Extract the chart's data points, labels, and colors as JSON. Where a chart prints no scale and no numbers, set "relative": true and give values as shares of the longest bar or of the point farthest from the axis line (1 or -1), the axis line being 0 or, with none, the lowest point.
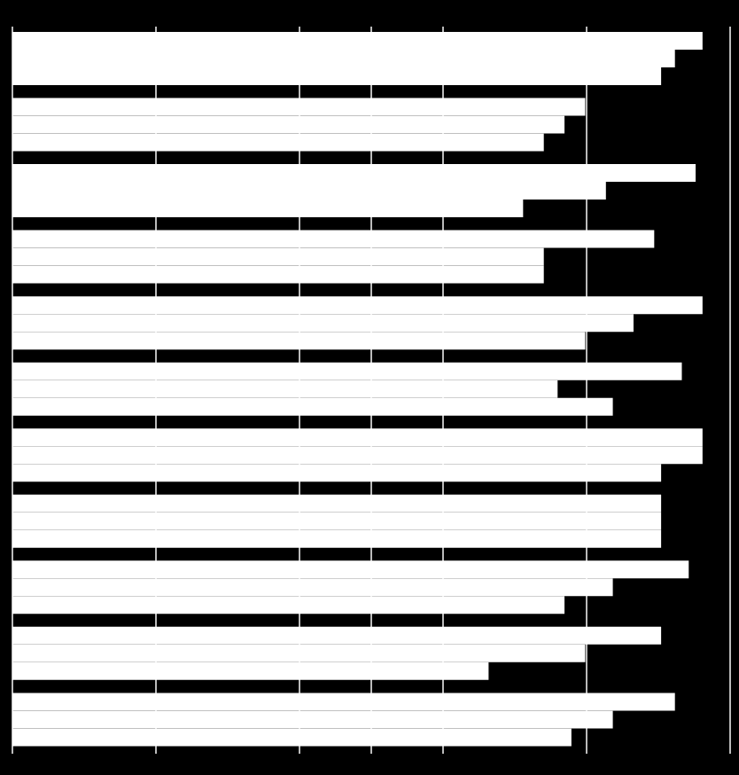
{
  "chart_data": {
    "type": "bar",
    "orientation": "horizontal",
    "relative": true,
    "grid": "x",
    "legend": false,
    "categories": [
      null,
      null,
      null,
      null,
      null,
      null,
      null,
      null,
      null,
      null,
      null
    ],
    "series": [
      {
        "color": "#ffffff",
        "values": [
          1,
          0.83,
          0.99,
          0.93,
          1,
          0.97,
          1,
          0.94,
          0.98,
          0.94,
          0.96
        ]
      },
      {
        "color": "#ffffff",
        "values": [
          0.96,
          0.8,
          0.86,
          0.77,
          0.9,
          0.79,
          1,
          0.94,
          0.87,
          0.83,
          0.87
        ]
      },
      {
        "color": "#ffffff",
        "values": [
          0.94,
          0.77,
          0.74,
          0.77,
          0.83,
          0.87,
          0.94,
          0.94,
          0.8,
          0.69,
          0.81
        ]
      }
    ]
  }
}
